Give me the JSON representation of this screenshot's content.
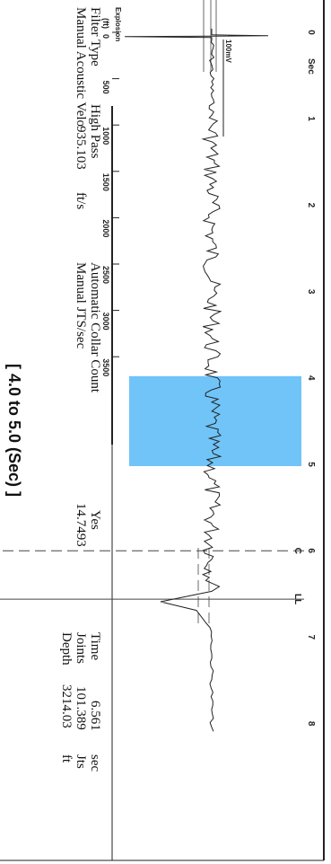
{
  "chart_data": {
    "type": "line",
    "seconds_axis": {
      "label": "Sec",
      "ticks": [
        0,
        1,
        2,
        3,
        4,
        5,
        6,
        7,
        8
      ]
    },
    "depth_axis": {
      "label": "(ft)",
      "ticks": [
        0,
        500,
        1000,
        1500,
        2000,
        2500,
        3000,
        3500
      ]
    },
    "explosion_label": "Explosion",
    "scale_label": "100mV",
    "highlight_sec": [
      4.0,
      5.0
    ],
    "markers": {
      "C": 6.0,
      "LL": 6.561
    },
    "trace_peaks": [
      {
        "t": 0.04,
        "kind": "explosion spike"
      },
      {
        "t": 6.59,
        "kind": "collar reflection"
      }
    ]
  },
  "filter": {
    "label": "Filter Type",
    "value": "High Pass"
  },
  "velocity": {
    "label": "Manual Acoustic Velo",
    "value": "935.103",
    "unit": "ft/s"
  },
  "collar_count": {
    "label": "Automatic Collar Count",
    "value": "Yes"
  },
  "jts_sec": {
    "label": "Manual JTS/sec",
    "value": "14.7493"
  },
  "time": {
    "label": "Time",
    "value": "6.561",
    "unit": "sec"
  },
  "joints": {
    "label": "Joints",
    "value": "101.389",
    "unit": "Jts"
  },
  "depth": {
    "label": "Depth",
    "value": "3214.03",
    "unit": "ft"
  },
  "range_label": "[ 4.0 to 5.0 (Sec) ]",
  "colors": {
    "highlight": "#70c4f8",
    "trace": "#222222"
  }
}
